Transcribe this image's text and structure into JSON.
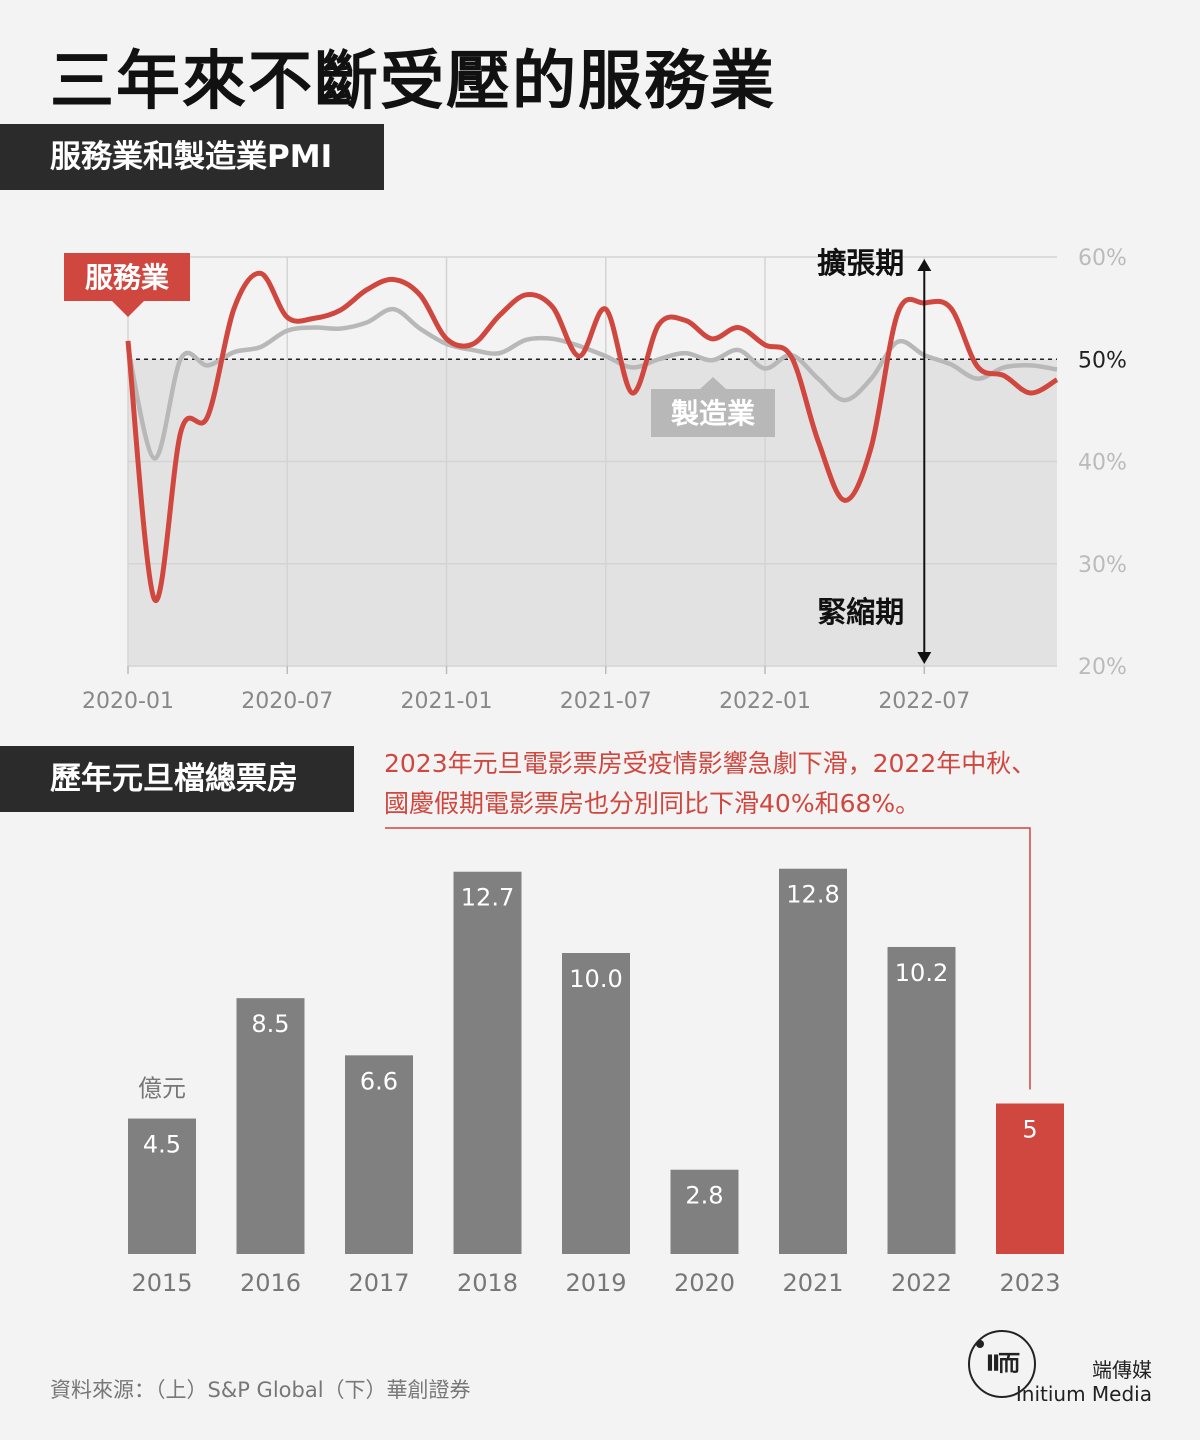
{
  "title": "三年來不斷受壓的服務業",
  "pmi_section_label": "服務業和製造業PMI",
  "box_section_label": "歷年元旦檔總票房",
  "box_note_line1": "2023年元旦電影票房受疫情影響急劇下滑，2022年中秋、",
  "box_note_line2": "國慶假期電影票房也分別同比下滑40%和68%。",
  "source": "資料來源：（上）S&P Global（下）華創證券",
  "brand": {
    "logo_glyph": "ΙΙ而",
    "name_cn": "端傳媒",
    "name_en": "Initium Media"
  },
  "chart_data": [
    {
      "type": "line",
      "x_ticks": [
        "2020-01",
        "2020-07",
        "2021-01",
        "2021-07",
        "2022-01",
        "2022-07"
      ],
      "y_ticks": [
        "60%",
        "50%",
        "40%",
        "30%",
        "20%"
      ],
      "ylim": [
        20,
        60
      ],
      "highlight_value": 50,
      "annotations": {
        "expansion": "擴張期",
        "contraction": "緊縮期"
      },
      "series": [
        {
          "name": "服務業",
          "color": "#d0473f",
          "values": [
            51.8,
            26.5,
            43.0,
            44.4,
            55.0,
            58.4,
            54.1,
            54.0,
            54.8,
            56.8,
            57.8,
            56.3,
            52.0,
            51.5,
            54.3,
            56.3,
            55.1,
            50.3,
            54.9,
            46.7,
            53.4,
            53.8,
            52.0,
            53.1,
            51.4,
            50.2,
            42.0,
            36.2,
            41.4,
            54.5,
            55.5,
            55.0,
            49.3,
            48.4,
            46.7,
            48.0
          ]
        },
        {
          "name": "製造業",
          "color": "#b8b8b8",
          "values": [
            51.1,
            40.3,
            50.1,
            49.4,
            50.7,
            51.2,
            52.8,
            53.1,
            53.0,
            53.6,
            54.9,
            53.0,
            51.5,
            50.9,
            50.6,
            51.9,
            52.0,
            51.3,
            50.3,
            49.2,
            50.0,
            50.6,
            49.9,
            50.9,
            49.1,
            50.4,
            48.1,
            46.0,
            48.1,
            51.7,
            50.4,
            49.5,
            48.1,
            49.2,
            49.4,
            49.0
          ]
        }
      ]
    },
    {
      "type": "bar",
      "unit": "億元",
      "categories": [
        "2015",
        "2016",
        "2017",
        "2018",
        "2019",
        "2020",
        "2021",
        "2022",
        "2023"
      ],
      "values": [
        4.5,
        8.5,
        6.6,
        12.7,
        10.0,
        2.8,
        12.8,
        10.2,
        5
      ],
      "value_labels": [
        "4.5",
        "8.5",
        "6.6",
        "12.7",
        "10.0",
        "2.8",
        "12.8",
        "10.2",
        "5"
      ],
      "color": "#808080",
      "highlight_color": "#d0473f",
      "highlight_index": 8
    }
  ]
}
